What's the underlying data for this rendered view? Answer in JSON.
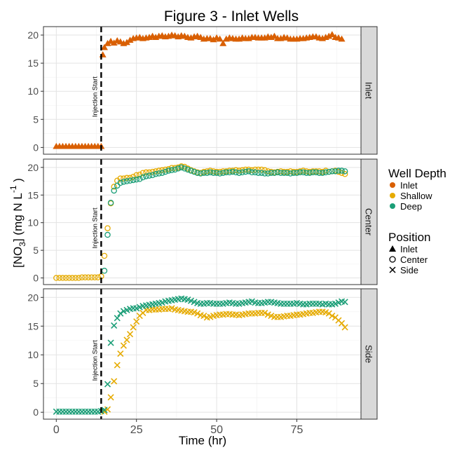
{
  "chart_data": {
    "type": "scatter",
    "title": "Figure 3 - Inlet Wells",
    "xlabel": "Time (hr)",
    "ylabel": {
      "main": "[NO",
      "sub": "3",
      "mid": "] (mg N L",
      "sup": "-1",
      "end": " )"
    },
    "xlim": [
      -4,
      95
    ],
    "xticks": [
      0,
      25,
      50,
      75
    ],
    "ylim": [
      -1.2,
      21.5
    ],
    "yticks": [
      0,
      5,
      10,
      15,
      20
    ],
    "grid": true,
    "vline": {
      "x": 14,
      "label": "Injection Start",
      "style": "dashed"
    },
    "panels": [
      {
        "strip": "Inlet",
        "series": [
          {
            "depth": "Inlet",
            "position": "Inlet",
            "x": [
              0,
              1,
              2,
              3,
              4,
              5,
              6,
              7,
              8,
              9,
              10,
              11,
              12,
              13,
              14,
              14.5,
              15,
              16,
              17,
              18,
              19,
              20,
              21,
              22,
              23,
              24,
              25,
              26,
              27,
              28,
              29,
              30,
              31,
              32,
              33,
              34,
              35,
              36,
              37,
              38,
              39,
              40,
              41,
              42,
              43,
              44,
              45,
              46,
              47,
              48,
              49,
              50,
              51,
              52,
              53,
              54,
              55,
              56,
              57,
              58,
              59,
              60,
              61,
              62,
              63,
              64,
              65,
              66,
              67,
              68,
              69,
              70,
              71,
              72,
              73,
              74,
              75,
              76,
              77,
              78,
              79,
              80,
              81,
              82,
              83,
              84,
              85,
              86,
              87,
              88,
              89
            ],
            "y": [
              0.2,
              0.2,
              0.2,
              0.2,
              0.2,
              0.2,
              0.2,
              0.2,
              0.2,
              0.2,
              0.2,
              0.2,
              0.2,
              0.2,
              0.2,
              16.5,
              17.8,
              18.5,
              18.9,
              18.6,
              19.0,
              18.8,
              18.5,
              18.7,
              19.1,
              19.4,
              19.5,
              19.6,
              19.4,
              19.5,
              19.6,
              19.8,
              19.6,
              19.8,
              19.9,
              19.7,
              19.8,
              20.0,
              19.9,
              19.7,
              19.9,
              19.8,
              19.6,
              19.5,
              19.7,
              19.8,
              19.6,
              19.3,
              19.4,
              19.4,
              19.2,
              19.5,
              19.3,
              18.5,
              19.3,
              19.5,
              19.4,
              19.3,
              19.3,
              19.5,
              19.4,
              19.4,
              19.6,
              19.6,
              19.5,
              19.5,
              19.5,
              19.7,
              19.6,
              19.8,
              19.4,
              19.4,
              19.6,
              19.5,
              19.3,
              19.3,
              19.3,
              19.4,
              19.4,
              19.5,
              19.6,
              19.7,
              19.7,
              19.5,
              19.4,
              19.6,
              19.8,
              20.1,
              19.6,
              19.5,
              19.3
            ]
          }
        ]
      },
      {
        "strip": "Center",
        "series": [
          {
            "depth": "Shallow",
            "position": "Center",
            "x": [
              0,
              1,
              2,
              3,
              4,
              5,
              6,
              7,
              8,
              9,
              10,
              11,
              12,
              13,
              14,
              15,
              16,
              17,
              18,
              19,
              20,
              21,
              22,
              23,
              24,
              25,
              26,
              27,
              28,
              29,
              30,
              31,
              32,
              33,
              34,
              35,
              36,
              37,
              38,
              39,
              40,
              41,
              42,
              43,
              44,
              45,
              46,
              47,
              48,
              49,
              50,
              51,
              52,
              53,
              54,
              55,
              56,
              57,
              58,
              59,
              60,
              61,
              62,
              63,
              64,
              65,
              66,
              67,
              68,
              69,
              70,
              71,
              72,
              73,
              74,
              75,
              76,
              77,
              78,
              79,
              80,
              81,
              82,
              83,
              84,
              85,
              86,
              87,
              88,
              89,
              90
            ],
            "y": [
              0.0,
              0.0,
              0.0,
              0.0,
              0.0,
              0.0,
              0.0,
              0.0,
              0.1,
              0.1,
              0.1,
              0.1,
              0.1,
              0.1,
              0.3,
              4.0,
              9.0,
              13.5,
              16.5,
              17.6,
              18.0,
              18.0,
              18.1,
              18.1,
              18.3,
              18.6,
              18.7,
              19.0,
              19.1,
              19.1,
              19.2,
              19.3,
              19.4,
              19.5,
              19.6,
              19.7,
              19.9,
              19.9,
              20.0,
              20.2,
              20.1,
              19.8,
              19.5,
              19.3,
              19.1,
              19.0,
              19.2,
              19.3,
              19.4,
              19.3,
              19.2,
              19.2,
              19.3,
              19.3,
              19.4,
              19.4,
              19.5,
              19.4,
              19.5,
              19.6,
              19.6,
              19.5,
              19.6,
              19.6,
              19.6,
              19.5,
              19.3,
              19.2,
              19.1,
              19.2,
              19.3,
              19.2,
              19.2,
              19.3,
              19.2,
              19.2,
              19.3,
              19.4,
              19.3,
              19.2,
              19.3,
              19.3,
              19.3,
              19.2,
              19.4,
              19.2,
              19.3,
              19.4,
              19.2,
              19.0,
              18.8
            ]
          },
          {
            "depth": "Deep",
            "position": "Center",
            "x": [
              15,
              16,
              17,
              18,
              19,
              20,
              21,
              22,
              23,
              24,
              25,
              26,
              27,
              28,
              29,
              30,
              31,
              32,
              33,
              34,
              35,
              36,
              37,
              38,
              39,
              40,
              41,
              42,
              43,
              44,
              45,
              46,
              47,
              48,
              49,
              50,
              51,
              52,
              53,
              54,
              55,
              56,
              57,
              58,
              59,
              60,
              61,
              62,
              63,
              64,
              65,
              66,
              67,
              68,
              69,
              70,
              71,
              72,
              73,
              74,
              75,
              76,
              77,
              78,
              79,
              80,
              81,
              82,
              83,
              84,
              85,
              86,
              87,
              88,
              89,
              90
            ],
            "y": [
              1.3,
              7.8,
              13.6,
              15.8,
              16.7,
              17.2,
              17.4,
              17.5,
              17.6,
              17.7,
              17.8,
              17.9,
              18.2,
              18.4,
              18.5,
              18.6,
              18.8,
              18.9,
              19.0,
              19.2,
              19.4,
              19.5,
              19.6,
              19.8,
              20.0,
              19.8,
              19.6,
              19.4,
              19.2,
              19.0,
              18.9,
              19.0,
              19.0,
              19.1,
              19.0,
              19.0,
              18.9,
              19.0,
              19.1,
              19.1,
              19.2,
              19.1,
              19.0,
              19.1,
              19.2,
              19.3,
              19.1,
              19.1,
              19.0,
              19.0,
              18.9,
              18.9,
              19.0,
              19.0,
              19.1,
              19.0,
              19.0,
              19.0,
              18.9,
              19.0,
              19.0,
              19.1,
              19.1,
              19.0,
              19.0,
              19.1,
              19.1,
              19.0,
              19.0,
              19.1,
              19.2,
              19.3,
              19.3,
              19.4,
              19.4,
              19.3
            ]
          }
        ]
      },
      {
        "strip": "Side",
        "series": [
          {
            "depth": "Shallow",
            "position": "Side",
            "x": [
              15,
              16,
              17,
              18,
              19,
              20,
              21,
              22,
              23,
              24,
              25,
              26,
              27,
              28,
              29,
              30,
              31,
              32,
              33,
              34,
              35,
              36,
              37,
              38,
              39,
              40,
              41,
              42,
              43,
              44,
              45,
              46,
              47,
              48,
              49,
              50,
              51,
              52,
              53,
              54,
              55,
              56,
              57,
              58,
              59,
              60,
              61,
              62,
              63,
              64,
              65,
              66,
              67,
              68,
              69,
              70,
              71,
              72,
              73,
              74,
              75,
              76,
              77,
              78,
              79,
              80,
              81,
              82,
              83,
              84,
              85,
              86,
              87,
              88,
              89,
              90
            ],
            "y": [
              0.1,
              0.5,
              2.6,
              5.4,
              8.2,
              10.2,
              11.6,
              12.6,
              13.6,
              14.8,
              15.8,
              16.8,
              17.3,
              17.8,
              17.8,
              17.9,
              17.9,
              17.9,
              18.0,
              18.0,
              18.0,
              18.1,
              17.9,
              17.8,
              17.7,
              17.6,
              17.5,
              17.5,
              17.4,
              17.2,
              16.9,
              16.8,
              16.5,
              16.6,
              16.8,
              16.9,
              17.0,
              17.0,
              17.1,
              17.1,
              17.0,
              17.0,
              16.9,
              17.0,
              17.1,
              17.2,
              17.2,
              17.2,
              17.3,
              17.3,
              17.3,
              17.0,
              16.8,
              16.6,
              16.6,
              16.6,
              16.7,
              16.8,
              16.8,
              16.9,
              17.0,
              17.0,
              17.1,
              17.2,
              17.3,
              17.3,
              17.4,
              17.5,
              17.5,
              17.4,
              17.2,
              16.8,
              16.5,
              16.0,
              15.5,
              14.8
            ]
          },
          {
            "depth": "Deep",
            "position": "Side",
            "x": [
              0,
              1,
              2,
              3,
              4,
              5,
              6,
              7,
              8,
              9,
              10,
              11,
              12,
              13,
              14,
              15,
              16,
              17,
              18,
              19,
              20,
              21,
              22,
              23,
              24,
              25,
              26,
              27,
              28,
              29,
              30,
              31,
              32,
              33,
              34,
              35,
              36,
              37,
              38,
              39,
              40,
              41,
              42,
              43,
              44,
              45,
              46,
              47,
              48,
              49,
              50,
              51,
              52,
              53,
              54,
              55,
              56,
              57,
              58,
              59,
              60,
              61,
              62,
              63,
              64,
              65,
              66,
              67,
              68,
              69,
              70,
              71,
              72,
              73,
              74,
              75,
              76,
              77,
              78,
              79,
              80,
              81,
              82,
              83,
              84,
              85,
              86,
              87,
              88,
              89,
              90
            ],
            "y": [
              0.1,
              0.1,
              0.1,
              0.1,
              0.1,
              0.1,
              0.1,
              0.1,
              0.1,
              0.1,
              0.1,
              0.1,
              0.1,
              0.1,
              0.2,
              0.4,
              4.9,
              12.1,
              15.1,
              16.4,
              17.2,
              17.6,
              17.8,
              18.0,
              18.1,
              18.1,
              18.3,
              18.5,
              18.6,
              18.7,
              18.8,
              18.9,
              19.0,
              19.1,
              19.3,
              19.4,
              19.5,
              19.6,
              19.7,
              19.8,
              19.7,
              19.6,
              19.4,
              19.2,
              19.0,
              18.9,
              18.9,
              19.0,
              19.0,
              18.9,
              18.9,
              18.9,
              18.9,
              19.0,
              19.1,
              19.0,
              18.9,
              18.9,
              19.0,
              19.1,
              19.2,
              19.3,
              19.1,
              19.0,
              19.0,
              19.1,
              19.2,
              19.2,
              19.1,
              19.0,
              18.9,
              18.9,
              18.9,
              18.9,
              18.9,
              19.0,
              18.9,
              18.8,
              18.8,
              18.9,
              18.9,
              18.9,
              18.9,
              18.8,
              18.9,
              18.8,
              18.8,
              18.9,
              19.1,
              19.3,
              19.2
            ]
          }
        ]
      }
    ],
    "legend": {
      "placement": "right",
      "depth_title": "Well Depth",
      "depth_items": [
        {
          "label": "Inlet",
          "color": "#d95f02"
        },
        {
          "label": "Shallow",
          "color": "#e6ab02"
        },
        {
          "label": "Deep",
          "color": "#1b9e77"
        }
      ],
      "position_title": "Position",
      "position_items": [
        {
          "label": "Inlet",
          "shape": "triangle"
        },
        {
          "label": "Center",
          "shape": "circle"
        },
        {
          "label": "Side",
          "shape": "cross"
        }
      ]
    },
    "colors": {
      "Inlet": "#d95f02",
      "Shallow": "#e6ab02",
      "Deep": "#1b9e77"
    },
    "shapes": {
      "Inlet": "triangle",
      "Center": "circle",
      "Side": "cross"
    }
  }
}
